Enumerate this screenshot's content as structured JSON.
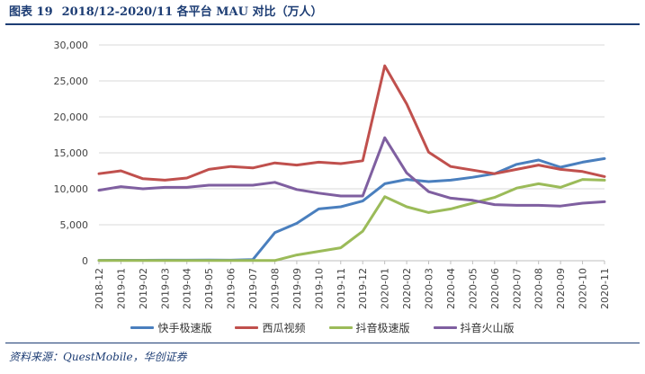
{
  "figure": {
    "number": "图表 19",
    "title": "2018/12-2020/11 各平台 MAU 对比（万人）",
    "source": "资料来源：QuestMobile，华创证券"
  },
  "colors": {
    "series": [
      "#4a7fbe",
      "#c0504d",
      "#9bbb59",
      "#7f5fa0"
    ],
    "grid": "#d9d9d9",
    "axis": "#bfbfbf",
    "accent": "#1d3d74"
  },
  "chart_data": {
    "type": "line",
    "title": "2018/12-2020/11 各平台 MAU 对比（万人）",
    "xlabel": "",
    "ylabel": "",
    "ylim": [
      0,
      30000
    ],
    "yticks": [
      0,
      5000,
      10000,
      15000,
      20000,
      25000,
      30000
    ],
    "ytick_labels": [
      "0",
      "5,000",
      "10,000",
      "15,000",
      "20,000",
      "25,000",
      "30,000"
    ],
    "grid": true,
    "legend_position": "bottom",
    "categories": [
      "2018-12",
      "2019-01",
      "2019-02",
      "2019-03",
      "2019-04",
      "2019-05",
      "2019-06",
      "2019-07",
      "2019-08",
      "2019-09",
      "2019-10",
      "2019-11",
      "2019-12",
      "2020-01",
      "2020-02",
      "2020-03",
      "2020-04",
      "2020-05",
      "2020-06",
      "2020-07",
      "2020-08",
      "2020-09",
      "2020-10",
      "2020-11"
    ],
    "series": [
      {
        "name": "快手极速版",
        "values": [
          50,
          60,
          60,
          70,
          80,
          90,
          80,
          150,
          3900,
          5200,
          7200,
          7500,
          8300,
          10700,
          11300,
          11000,
          11200,
          11600,
          12100,
          13400,
          14000,
          13000,
          13700,
          14200
        ]
      },
      {
        "name": "西瓜视频",
        "values": [
          12100,
          12500,
          11400,
          11200,
          11500,
          12700,
          13100,
          12900,
          13600,
          13300,
          13700,
          13500,
          13900,
          27100,
          21800,
          15100,
          13100,
          12600,
          12100,
          12700,
          13300,
          12700,
          12400,
          11700
        ]
      },
      {
        "name": "抖音极速版",
        "values": [
          30,
          30,
          30,
          30,
          30,
          30,
          30,
          30,
          30,
          800,
          1300,
          1800,
          4100,
          8900,
          7500,
          6700,
          7200,
          8000,
          8800,
          10100,
          10700,
          10200,
          11300,
          11200
        ]
      },
      {
        "name": "抖音火山版",
        "values": [
          9800,
          10300,
          10000,
          10200,
          10200,
          10500,
          10500,
          10500,
          10900,
          9900,
          9400,
          9000,
          9000,
          17100,
          12200,
          9600,
          8700,
          8400,
          7800,
          7700,
          7700,
          7600,
          8000,
          8200
        ]
      }
    ]
  }
}
